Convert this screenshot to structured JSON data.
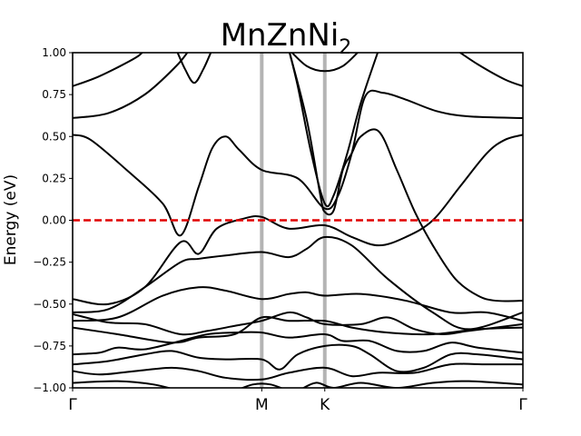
{
  "chart_data": {
    "type": "line",
    "title": "MnZnNi",
    "title_subscript": "2",
    "xlabel": "",
    "ylabel": "Energy (eV)",
    "ylim": [
      -1.0,
      1.0
    ],
    "xlim": [
      0,
      1.0
    ],
    "grid": false,
    "yticks": [
      -1.0,
      -0.75,
      -0.5,
      -0.25,
      0.0,
      0.25,
      0.5,
      0.75,
      1.0
    ],
    "ytick_labels": [
      "−1.00",
      "−0.75",
      "−0.50",
      "−0.25",
      "0.00",
      "0.25",
      "0.50",
      "0.75",
      "1.00"
    ],
    "kpoints": [
      {
        "label": "Γ",
        "x": 0.0
      },
      {
        "label": "M",
        "x": 0.42
      },
      {
        "label": "K",
        "x": 0.56
      },
      {
        "label": "Γ",
        "x": 1.0
      }
    ],
    "fermi_level": 0.0,
    "colors": {
      "bands": "#000000",
      "fermi": "#e00000",
      "kline": "#b4b4b4"
    },
    "series": [
      {
        "values": [
          [
            0,
            0.8
          ],
          [
            0.06,
            0.86
          ],
          [
            0.14,
            0.97
          ],
          [
            0.16,
            1.02
          ]
        ]
      },
      {
        "values": [
          [
            0.23,
            1.02
          ],
          [
            0.25,
            0.9
          ],
          [
            0.27,
            0.82
          ],
          [
            0.29,
            0.9
          ],
          [
            0.31,
            1.02
          ]
        ]
      },
      {
        "values": [
          [
            0,
            0.61
          ],
          [
            0.08,
            0.64
          ],
          [
            0.16,
            0.75
          ],
          [
            0.23,
            0.92
          ],
          [
            0.26,
            1.02
          ]
        ]
      },
      {
        "values": [
          [
            0.48,
            1.02
          ],
          [
            0.5,
            0.8
          ],
          [
            0.53,
            0.4
          ],
          [
            0.56,
            0.1
          ],
          [
            0.58,
            0.15
          ],
          [
            0.61,
            0.4
          ],
          [
            0.64,
            0.7
          ],
          [
            0.68,
            1.02
          ]
        ]
      },
      {
        "values": [
          [
            0.48,
            1.02
          ],
          [
            0.52,
            0.92
          ],
          [
            0.56,
            0.89
          ],
          [
            0.6,
            0.92
          ],
          [
            0.64,
            1.02
          ]
        ]
      },
      {
        "values": [
          [
            0.85,
            1.02
          ],
          [
            0.9,
            0.93
          ],
          [
            0.96,
            0.84
          ],
          [
            1.0,
            0.8
          ]
        ]
      },
      {
        "values": [
          [
            0,
            0.51
          ],
          [
            0.04,
            0.48
          ],
          [
            0.12,
            0.3
          ],
          [
            0.2,
            0.1
          ],
          [
            0.24,
            -0.09
          ],
          [
            0.28,
            0.2
          ],
          [
            0.31,
            0.43
          ],
          [
            0.34,
            0.5
          ],
          [
            0.37,
            0.42
          ],
          [
            0.42,
            0.3
          ],
          [
            0.5,
            0.25
          ],
          [
            0.56,
            0.07
          ],
          [
            0.59,
            0.15
          ],
          [
            0.62,
            0.4
          ],
          [
            0.65,
            0.74
          ],
          [
            0.69,
            0.76
          ],
          [
            0.74,
            0.72
          ],
          [
            0.81,
            0.65
          ],
          [
            0.88,
            0.62
          ],
          [
            1.0,
            0.61
          ]
        ]
      },
      {
        "values": [
          [
            0.48,
            1.02
          ],
          [
            0.52,
            0.6
          ],
          [
            0.55,
            0.15
          ],
          [
            0.56,
            0.05
          ],
          [
            0.58,
            0.06
          ],
          [
            0.6,
            0.3
          ],
          [
            0.62,
            0.4
          ],
          [
            0.64,
            0.5
          ],
          [
            0.68,
            0.53
          ],
          [
            0.72,
            0.3
          ],
          [
            0.76,
            0.05
          ],
          [
            0.8,
            -0.15
          ],
          [
            0.85,
            -0.35
          ],
          [
            0.9,
            -0.45
          ],
          [
            0.94,
            -0.48
          ],
          [
            1.0,
            -0.48
          ]
        ]
      },
      {
        "values": [
          [
            0,
            -0.47
          ],
          [
            0.08,
            -0.5
          ],
          [
            0.16,
            -0.4
          ],
          [
            0.24,
            -0.13
          ],
          [
            0.28,
            -0.2
          ],
          [
            0.32,
            -0.05
          ],
          [
            0.38,
            0.01
          ],
          [
            0.42,
            0.02
          ],
          [
            0.48,
            -0.05
          ],
          [
            0.56,
            -0.03
          ],
          [
            0.62,
            -0.1
          ],
          [
            0.68,
            -0.15
          ],
          [
            0.74,
            -0.1
          ],
          [
            0.8,
            0.0
          ],
          [
            0.86,
            0.2
          ],
          [
            0.92,
            0.4
          ],
          [
            0.96,
            0.48
          ],
          [
            1.0,
            0.51
          ]
        ]
      },
      {
        "values": [
          [
            0,
            -0.55
          ],
          [
            0.08,
            -0.53
          ],
          [
            0.16,
            -0.4
          ],
          [
            0.24,
            -0.25
          ],
          [
            0.28,
            -0.23
          ],
          [
            0.34,
            -0.21
          ],
          [
            0.42,
            -0.19
          ],
          [
            0.48,
            -0.22
          ],
          [
            0.52,
            -0.17
          ],
          [
            0.56,
            -0.1
          ],
          [
            0.62,
            -0.15
          ],
          [
            0.7,
            -0.35
          ],
          [
            0.8,
            -0.55
          ],
          [
            0.88,
            -0.65
          ],
          [
            1.0,
            -0.55
          ]
        ]
      },
      {
        "values": [
          [
            0,
            -0.6
          ],
          [
            0.1,
            -0.58
          ],
          [
            0.2,
            -0.45
          ],
          [
            0.28,
            -0.4
          ],
          [
            0.34,
            -0.42
          ],
          [
            0.42,
            -0.47
          ],
          [
            0.48,
            -0.44
          ],
          [
            0.52,
            -0.43
          ],
          [
            0.56,
            -0.45
          ],
          [
            0.64,
            -0.44
          ],
          [
            0.74,
            -0.48
          ],
          [
            0.84,
            -0.55
          ],
          [
            0.92,
            -0.55
          ],
          [
            1.0,
            -0.6
          ]
        ]
      },
      {
        "values": [
          [
            0,
            -0.56
          ],
          [
            0.08,
            -0.61
          ],
          [
            0.16,
            -0.62
          ],
          [
            0.24,
            -0.68
          ],
          [
            0.3,
            -0.66
          ],
          [
            0.36,
            -0.63
          ],
          [
            0.42,
            -0.6
          ],
          [
            0.48,
            -0.55
          ],
          [
            0.52,
            -0.58
          ],
          [
            0.56,
            -0.62
          ],
          [
            0.64,
            -0.62
          ],
          [
            0.7,
            -0.58
          ],
          [
            0.76,
            -0.65
          ],
          [
            0.82,
            -0.68
          ],
          [
            0.88,
            -0.66
          ],
          [
            1.0,
            -0.62
          ]
        ]
      },
      {
        "values": [
          [
            0,
            -0.64
          ],
          [
            0.1,
            -0.68
          ],
          [
            0.22,
            -0.73
          ],
          [
            0.28,
            -0.7
          ],
          [
            0.36,
            -0.68
          ],
          [
            0.42,
            -0.58
          ],
          [
            0.48,
            -0.6
          ],
          [
            0.56,
            -0.6
          ],
          [
            0.62,
            -0.64
          ],
          [
            0.7,
            -0.67
          ],
          [
            0.8,
            -0.68
          ],
          [
            0.9,
            -0.65
          ],
          [
            1.0,
            -0.64
          ]
        ]
      },
      {
        "values": [
          [
            0,
            -0.8
          ],
          [
            0.06,
            -0.79
          ],
          [
            0.1,
            -0.76
          ],
          [
            0.16,
            -0.77
          ],
          [
            0.24,
            -0.72
          ],
          [
            0.3,
            -0.68
          ],
          [
            0.36,
            -0.67
          ],
          [
            0.42,
            -0.67
          ],
          [
            0.48,
            -0.7
          ],
          [
            0.56,
            -0.68
          ],
          [
            0.6,
            -0.72
          ],
          [
            0.66,
            -0.72
          ],
          [
            0.72,
            -0.78
          ],
          [
            0.78,
            -0.78
          ],
          [
            0.84,
            -0.73
          ],
          [
            0.9,
            -0.76
          ],
          [
            1.0,
            -0.79
          ]
        ]
      },
      {
        "values": [
          [
            0,
            -0.86
          ],
          [
            0.08,
            -0.84
          ],
          [
            0.16,
            -0.8
          ],
          [
            0.22,
            -0.78
          ],
          [
            0.28,
            -0.82
          ],
          [
            0.34,
            -0.83
          ],
          [
            0.42,
            -0.83
          ],
          [
            0.46,
            -0.89
          ],
          [
            0.5,
            -0.8
          ],
          [
            0.56,
            -0.75
          ],
          [
            0.62,
            -0.75
          ],
          [
            0.66,
            -0.8
          ],
          [
            0.72,
            -0.9
          ],
          [
            0.78,
            -0.88
          ],
          [
            0.84,
            -0.8
          ],
          [
            0.9,
            -0.8
          ],
          [
            1.0,
            -0.83
          ]
        ]
      },
      {
        "values": [
          [
            0,
            -0.9
          ],
          [
            0.06,
            -0.92
          ],
          [
            0.14,
            -0.9
          ],
          [
            0.22,
            -0.88
          ],
          [
            0.28,
            -0.9
          ],
          [
            0.34,
            -0.94
          ],
          [
            0.42,
            -0.95
          ],
          [
            0.48,
            -0.91
          ],
          [
            0.56,
            -0.88
          ],
          [
            0.62,
            -0.93
          ],
          [
            0.68,
            -0.91
          ],
          [
            0.76,
            -0.91
          ],
          [
            0.84,
            -0.86
          ],
          [
            0.92,
            -0.86
          ],
          [
            1.0,
            -0.86
          ]
        ]
      },
      {
        "values": [
          [
            0,
            -0.97
          ],
          [
            0.1,
            -0.96
          ],
          [
            0.18,
            -0.98
          ],
          [
            0.24,
            -1.02
          ]
        ]
      },
      {
        "values": [
          [
            0.36,
            -1.02
          ],
          [
            0.4,
            -0.98
          ],
          [
            0.44,
            -0.98
          ],
          [
            0.48,
            -1.02
          ]
        ]
      },
      {
        "values": [
          [
            0.5,
            -1.02
          ],
          [
            0.54,
            -0.97
          ],
          [
            0.58,
            -1.0
          ],
          [
            0.64,
            -0.97
          ],
          [
            0.72,
            -1.0
          ],
          [
            0.8,
            -0.97
          ],
          [
            0.88,
            -0.96
          ],
          [
            1.0,
            -0.98
          ]
        ]
      }
    ]
  }
}
